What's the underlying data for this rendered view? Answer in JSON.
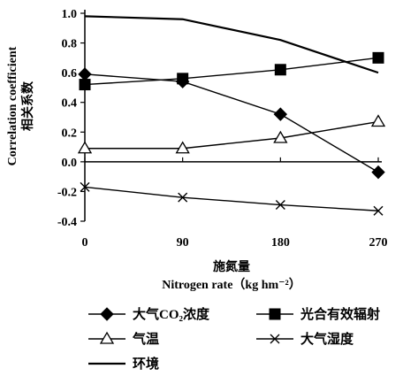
{
  "chart_data": {
    "type": "line",
    "title": "",
    "x": [
      0,
      90,
      180,
      270
    ],
    "x_ticks": [
      "0",
      "90",
      "180",
      "270"
    ],
    "y_ticks": [
      "1.0",
      "0.8",
      "0.6",
      "0.4",
      "0.2",
      "0.0",
      "-0.2",
      "-0.4"
    ],
    "ylim": [
      -0.4,
      1.0
    ],
    "xlabel_cn": "施氮量",
    "xlabel_en": "Nitrogen rate（kg hm⁻²）",
    "ylabel_en": "Correlation coefficient",
    "ylabel_cn": "相关系数",
    "grid": false,
    "legend_position": "bottom",
    "series": [
      {
        "name": "大气CO₂浓度",
        "marker": "diamond-filled",
        "values": [
          0.59,
          0.54,
          0.32,
          -0.07
        ]
      },
      {
        "name": "光合有效辐射",
        "marker": "square-filled",
        "values": [
          0.52,
          0.56,
          0.62,
          0.7
        ]
      },
      {
        "name": "气温",
        "marker": "triangle-open",
        "values": [
          0.09,
          0.09,
          0.16,
          0.27
        ]
      },
      {
        "name": "大气湿度",
        "marker": "x",
        "values": [
          -0.17,
          -0.24,
          -0.29,
          -0.33
        ]
      },
      {
        "name": "环境",
        "marker": "none",
        "values": [
          0.98,
          0.96,
          0.82,
          0.6
        ]
      }
    ]
  }
}
